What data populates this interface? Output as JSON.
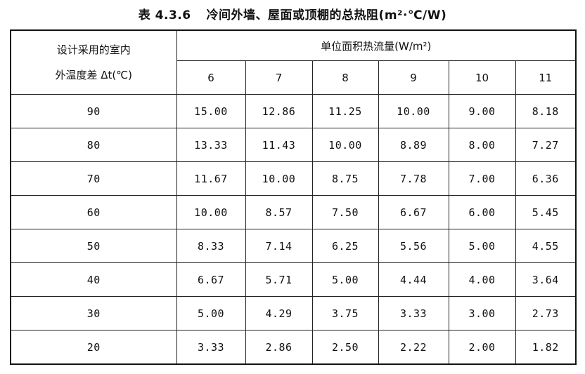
{
  "caption": {
    "number": "表 4.3.6",
    "title": "冷间外墙、屋面或顶棚的总热阻(m²·℃/W)"
  },
  "table": {
    "row_header_line1": "设计采用的室内",
    "row_header_line2": "外温度差 Δt(℃)",
    "group_header": "单位面积热流量(W/m²)",
    "columns": [
      "6",
      "7",
      "8",
      "9",
      "10",
      "11"
    ],
    "rows": [
      {
        "dt": "90",
        "values": [
          "15.00",
          "12.86",
          "11.25",
          "10.00",
          "9.00",
          "8.18"
        ]
      },
      {
        "dt": "80",
        "values": [
          "13.33",
          "11.43",
          "10.00",
          "8.89",
          "8.00",
          "7.27"
        ]
      },
      {
        "dt": "70",
        "values": [
          "11.67",
          "10.00",
          "8.75",
          "7.78",
          "7.00",
          "6.36"
        ]
      },
      {
        "dt": "60",
        "values": [
          "10.00",
          "8.57",
          "7.50",
          "6.67",
          "6.00",
          "5.45"
        ]
      },
      {
        "dt": "50",
        "values": [
          "8.33",
          "7.14",
          "6.25",
          "5.56",
          "5.00",
          "4.55"
        ]
      },
      {
        "dt": "40",
        "values": [
          "6.67",
          "5.71",
          "5.00",
          "4.44",
          "4.00",
          "3.64"
        ]
      },
      {
        "dt": "30",
        "values": [
          "5.00",
          "4.29",
          "3.75",
          "3.33",
          "3.00",
          "2.73"
        ]
      },
      {
        "dt": "20",
        "values": [
          "3.33",
          "2.86",
          "2.50",
          "2.22",
          "2.00",
          "1.82"
        ]
      }
    ]
  }
}
